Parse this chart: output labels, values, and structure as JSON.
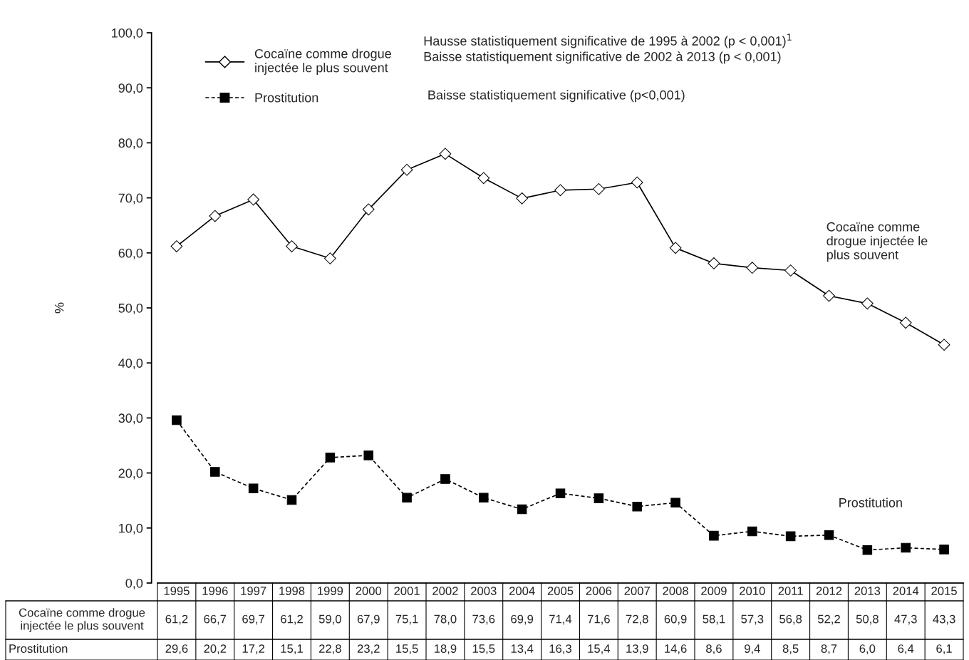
{
  "chart_data": {
    "type": "line",
    "ylabel": "%",
    "categories": [
      "1995",
      "1996",
      "1997",
      "1998",
      "1999",
      "2000",
      "2001",
      "2002",
      "2003",
      "2004",
      "2005",
      "2006",
      "2007",
      "2008",
      "2009",
      "2010",
      "2011",
      "2012",
      "2013",
      "2014",
      "2015"
    ],
    "series": [
      {
        "name": "Cocaïne comme drogue\ninjectée le plus souvent",
        "color": "#000000",
        "marker": "diamond",
        "line_style": "solid",
        "values": [
          61.2,
          66.7,
          69.7,
          61.2,
          59.0,
          67.9,
          75.1,
          78.0,
          73.6,
          69.9,
          71.4,
          71.6,
          72.8,
          60.9,
          58.1,
          57.3,
          56.8,
          52.2,
          50.8,
          47.3,
          43.3
        ],
        "value_labels": [
          "61,2",
          "66,7",
          "69,7",
          "61,2",
          "59,0",
          "67,9",
          "75,1",
          "78,0",
          "73,6",
          "69,9",
          "71,4",
          "71,6",
          "72,8",
          "60,9",
          "58,1",
          "57,3",
          "56,8",
          "52,2",
          "50,8",
          "47,3",
          "43,3"
        ]
      },
      {
        "name": "Prostitution",
        "color": "#000000",
        "marker": "square",
        "line_style": "dashed",
        "values": [
          29.6,
          20.2,
          17.2,
          15.1,
          22.8,
          23.2,
          15.5,
          18.9,
          15.5,
          13.4,
          16.3,
          15.4,
          13.9,
          14.6,
          8.6,
          9.4,
          8.5,
          8.7,
          6.0,
          6.4,
          6.1
        ],
        "value_labels": [
          "29,6",
          "20,2",
          "17,2",
          "15,1",
          "22,8",
          "23,2",
          "15,5",
          "18,9",
          "15,5",
          "13,4",
          "16,3",
          "15,4",
          "13,9",
          "14,6",
          "8,6",
          "9,4",
          "8,5",
          "8,7",
          "6,0",
          "6,4",
          "6,1"
        ]
      }
    ],
    "ylim": [
      0,
      100
    ],
    "yticks": [
      {
        "value": 0,
        "label": "0,0"
      },
      {
        "value": 10,
        "label": "10,0"
      },
      {
        "value": 20,
        "label": "20,0"
      },
      {
        "value": 30,
        "label": "30,0"
      },
      {
        "value": 40,
        "label": "40,0"
      },
      {
        "value": 50,
        "label": "50,0"
      },
      {
        "value": 60,
        "label": "60,0"
      },
      {
        "value": 70,
        "label": "70,0"
      },
      {
        "value": 80,
        "label": "80,0"
      },
      {
        "value": 90,
        "label": "90,0"
      },
      {
        "value": 100,
        "label": "100,0"
      }
    ],
    "tick_labels": "y",
    "grid": false,
    "legend": "top left",
    "annotations": [
      "Hausse statistiquement significative de 1995 à 2002 (p < 0,001)$^{1}$",
      "Baisse statistiquement significative de 2002 à 2013 (p < 0,001)",
      "Baisse statistiquement significative (p<0,001)",
      "Cocaïne comme\ndrogue injectée le\nplus souvent",
      "Prostitution"
    ]
  }
}
